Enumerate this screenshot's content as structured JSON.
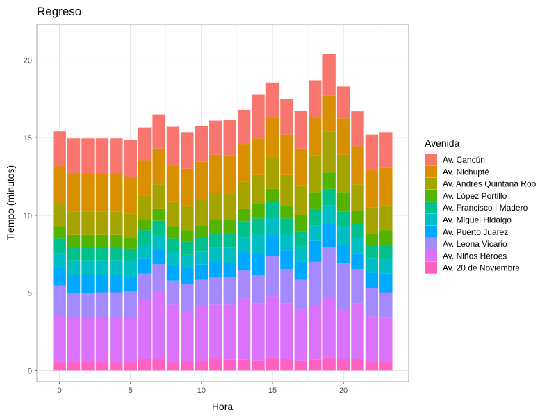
{
  "chart_data": {
    "type": "bar",
    "stacked": true,
    "title": "Regreso",
    "xlabel": "Hora",
    "ylabel": "Tiempo (minutos)",
    "xlim": [
      -1.6,
      24.6
    ],
    "ylim": [
      -0.7,
      22.3
    ],
    "xticks": [
      0,
      5,
      10,
      15,
      20
    ],
    "yticks": [
      0,
      5,
      10,
      15,
      20
    ],
    "grid": true,
    "legend_position": "right",
    "legend_title": "Avenida",
    "x": [
      0,
      1,
      2,
      3,
      4,
      5,
      6,
      7,
      8,
      9,
      10,
      11,
      12,
      13,
      14,
      15,
      16,
      17,
      18,
      19,
      20,
      21,
      22,
      23
    ],
    "series": [
      {
        "name": "Av. 20 de Noviembre",
        "color": "#FF61C3",
        "values": [
          0.55,
          0.55,
          0.55,
          0.55,
          0.55,
          0.55,
          0.75,
          0.8,
          0.55,
          0.6,
          0.6,
          0.8,
          0.7,
          0.7,
          0.65,
          0.85,
          0.75,
          0.65,
          0.7,
          0.85,
          0.75,
          0.75,
          0.55,
          0.55
        ]
      },
      {
        "name": "Av. Niños Héroes",
        "color": "#DB72FB",
        "values": [
          3.0,
          2.85,
          2.85,
          2.85,
          2.85,
          2.85,
          3.8,
          4.35,
          3.7,
          3.25,
          3.55,
          3.45,
          3.55,
          3.95,
          3.7,
          3.95,
          3.6,
          3.3,
          3.45,
          3.9,
          3.25,
          3.6,
          2.95,
          2.9
        ]
      },
      {
        "name": "Av. Leona Vicario",
        "color": "#A58AFF",
        "values": [
          1.95,
          1.6,
          1.6,
          1.65,
          1.65,
          1.75,
          1.7,
          1.7,
          1.55,
          1.75,
          1.7,
          1.75,
          1.75,
          1.8,
          1.8,
          2.55,
          2.2,
          1.9,
          2.85,
          3.2,
          2.9,
          2.2,
          1.8,
          1.6
        ]
      },
      {
        "name": "Av. Puerto Juarez",
        "color": "#00A9FF",
        "values": [
          1.1,
          1.15,
          1.15,
          1.1,
          1.1,
          0.9,
          1.0,
          0.95,
          1.0,
          1.0,
          1.0,
          1.05,
          0.95,
          1.15,
          1.35,
          1.3,
          1.2,
          1.15,
          1.35,
          1.5,
          1.2,
          1.0,
          1.0,
          1.2
        ]
      },
      {
        "name": "Av. Miguel Hidalgo",
        "color": "#00BFC4",
        "values": [
          0.95,
          0.95,
          0.95,
          0.95,
          0.95,
          0.95,
          0.85,
          0.9,
          0.85,
          0.85,
          0.85,
          0.85,
          0.95,
          1.0,
          1.3,
          1.2,
          1.05,
          1.0,
          1.0,
          1.2,
          1.2,
          1.0,
          0.95,
          0.95
        ]
      },
      {
        "name": "Av. Francisco I Madero",
        "color": "#00C08B",
        "values": [
          0.95,
          0.85,
          0.85,
          0.85,
          0.85,
          0.85,
          0.95,
          0.95,
          0.85,
          0.85,
          0.85,
          0.95,
          0.95,
          1.0,
          1.0,
          1.0,
          1.0,
          0.95,
          1.05,
          1.05,
          0.95,
          0.9,
          0.85,
          0.85
        ]
      },
      {
        "name": "Av. López Portillo",
        "color": "#53B400",
        "values": [
          0.8,
          0.8,
          0.8,
          0.8,
          0.8,
          0.75,
          0.7,
          0.75,
          0.8,
          0.75,
          0.8,
          0.85,
          0.85,
          0.8,
          0.95,
          0.85,
          0.85,
          1.05,
          1.1,
          1.05,
          1.25,
          0.85,
          0.75,
          1.0
        ]
      },
      {
        "name": "Av. Andres Quintana Roo",
        "color": "#A5A300",
        "values": [
          1.5,
          1.5,
          1.5,
          1.5,
          1.5,
          1.5,
          1.5,
          1.6,
          1.6,
          1.6,
          1.7,
          1.75,
          1.7,
          1.75,
          1.85,
          2.05,
          1.95,
          1.95,
          2.35,
          2.65,
          2.4,
          1.7,
          1.65,
          1.6
        ]
      },
      {
        "name": "Av. Nichupté",
        "color": "#D89000",
        "values": [
          2.35,
          2.45,
          2.45,
          2.4,
          2.4,
          2.4,
          2.3,
          2.3,
          2.3,
          2.35,
          2.4,
          2.45,
          2.45,
          2.45,
          2.35,
          2.55,
          2.6,
          2.35,
          2.45,
          2.3,
          2.35,
          2.45,
          2.4,
          2.4
        ]
      },
      {
        "name": "Av. Cancún",
        "color": "#F8766D",
        "values": [
          2.25,
          2.25,
          2.25,
          2.3,
          2.3,
          2.35,
          2.1,
          2.2,
          2.5,
          2.35,
          2.3,
          2.2,
          2.3,
          2.2,
          2.85,
          2.25,
          2.3,
          2.45,
          2.4,
          2.7,
          2.05,
          2.25,
          2.3,
          2.3
        ]
      }
    ]
  }
}
